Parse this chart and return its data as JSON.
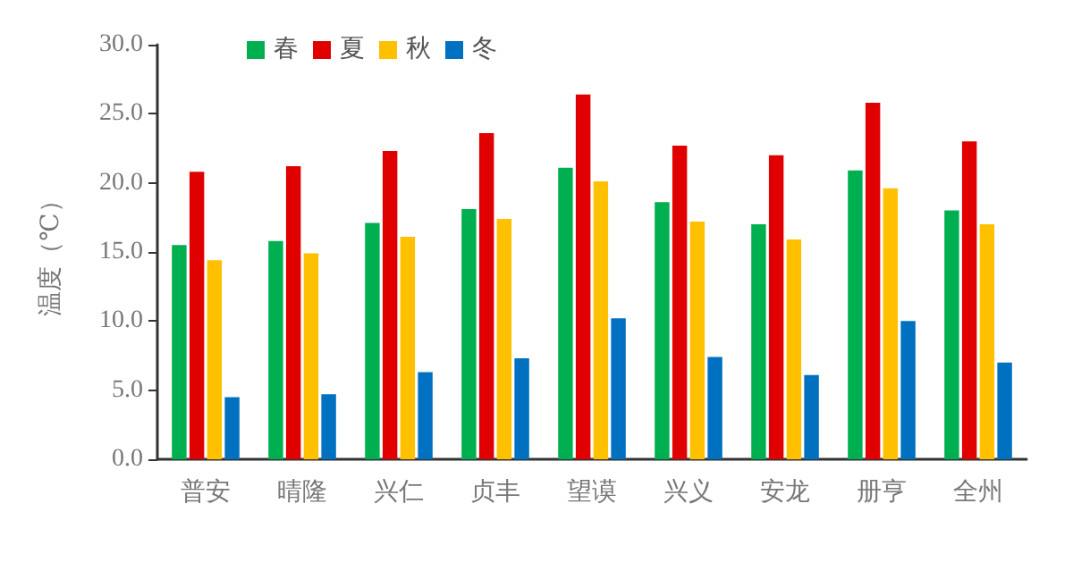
{
  "chart_data": {
    "type": "bar",
    "ylabel": "温度（℃）",
    "categories": [
      "普安",
      "晴隆",
      "兴仁",
      "贞丰",
      "望谟",
      "兴义",
      "安龙",
      "册亨",
      "全州"
    ],
    "series": [
      {
        "name": "春",
        "color": "#00b050",
        "values": [
          15.5,
          15.8,
          17.1,
          18.1,
          21.1,
          18.6,
          17.0,
          20.9,
          18.0
        ]
      },
      {
        "name": "夏",
        "color": "#e00000",
        "values": [
          20.8,
          21.2,
          22.3,
          23.6,
          26.4,
          22.7,
          22.0,
          25.8,
          23.0
        ]
      },
      {
        "name": "秋",
        "color": "#ffc000",
        "values": [
          14.4,
          14.9,
          16.1,
          17.4,
          20.1,
          17.2,
          15.9,
          19.6,
          17.0
        ]
      },
      {
        "name": "冬",
        "color": "#0070c0",
        "values": [
          4.5,
          4.7,
          6.3,
          7.3,
          10.2,
          7.4,
          6.1,
          10.0,
          7.0
        ]
      }
    ],
    "ylim": [
      0,
      30
    ],
    "yticks": [
      {
        "value": 0,
        "label": "0.0"
      },
      {
        "value": 5,
        "label": "5.0"
      },
      {
        "value": 10,
        "label": "10.0"
      },
      {
        "value": 15,
        "label": "15.0"
      },
      {
        "value": 20,
        "label": "20.0"
      },
      {
        "value": 25,
        "label": "25.0"
      },
      {
        "value": 30,
        "label": "30.0"
      }
    ],
    "grid": false,
    "legend": "top"
  }
}
